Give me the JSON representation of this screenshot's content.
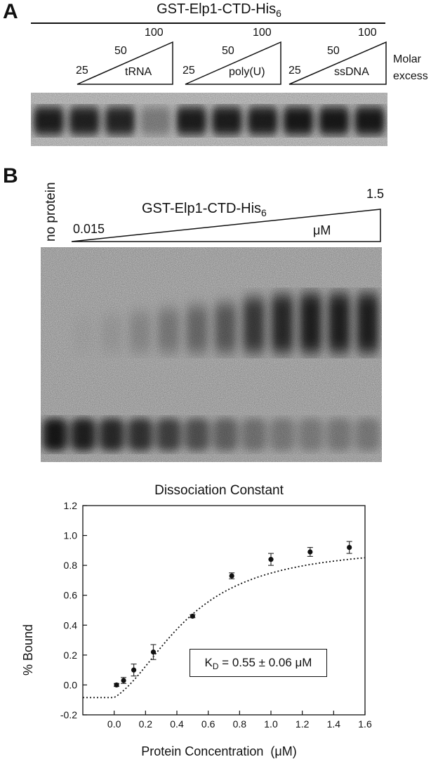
{
  "panel_a": {
    "letter": "A",
    "construct": {
      "text": "GST-Elp1-CTD-His",
      "subscript": "6"
    },
    "groups": [
      {
        "competitor": "tRNA",
        "amounts": [
          "25",
          "50",
          "100"
        ]
      },
      {
        "competitor": "poly(U)",
        "amounts": [
          "25",
          "50",
          "100"
        ]
      },
      {
        "competitor": "ssDNA",
        "amounts": [
          "25",
          "50",
          "100"
        ]
      }
    ],
    "side_label_line1": "Molar",
    "side_label_line2": "excess",
    "lane_intensities": [
      0.88,
      0.86,
      0.84,
      0.32,
      0.88,
      0.88,
      0.88,
      0.9,
      0.9,
      0.9
    ]
  },
  "panel_b": {
    "letter": "B",
    "no_protein_label": "no protein",
    "construct": {
      "text": "GST-Elp1-CTD-His",
      "subscript": "6"
    },
    "min_label": "0.015",
    "max_label": "1.5",
    "unit_label": "μM",
    "lanes": 12,
    "shifted_intensities": [
      0.0,
      0.05,
      0.1,
      0.2,
      0.3,
      0.4,
      0.5,
      0.7,
      0.8,
      0.85,
      0.85,
      0.85
    ],
    "free_intensities": [
      0.9,
      0.85,
      0.8,
      0.75,
      0.65,
      0.55,
      0.45,
      0.35,
      0.3,
      0.28,
      0.3,
      0.3
    ]
  },
  "chart_data": {
    "type": "scatter",
    "title": "Dissociation Constant",
    "xlabel": "Protein Concentration  (μM)",
    "ylabel": "% Bound",
    "xlim": [
      -0.2,
      1.6
    ],
    "ylim": [
      -0.2,
      1.2
    ],
    "xticks": [
      "0.0",
      "0.2",
      "0.4",
      "0.6",
      "0.8",
      "1.0",
      "1.2",
      "1.4",
      "1.6"
    ],
    "yticks": [
      "-0.2",
      "0.0",
      "0.2",
      "0.4",
      "0.6",
      "0.8",
      "1.0",
      "1.2"
    ],
    "points": [
      {
        "x": 0.015,
        "y": 0.0,
        "err": 0.01
      },
      {
        "x": 0.06,
        "y": 0.03,
        "err": 0.02
      },
      {
        "x": 0.125,
        "y": 0.1,
        "err": 0.04
      },
      {
        "x": 0.25,
        "y": 0.22,
        "err": 0.05
      },
      {
        "x": 0.5,
        "y": 0.46,
        "err": 0.01
      },
      {
        "x": 0.75,
        "y": 0.73,
        "err": 0.02
      },
      {
        "x": 1.0,
        "y": 0.84,
        "err": 0.04
      },
      {
        "x": 1.25,
        "y": 0.89,
        "err": 0.03
      },
      {
        "x": 1.5,
        "y": 0.92,
        "err": 0.04
      }
    ],
    "fit": {
      "style": "dotted",
      "kd": 0.55,
      "n": 2.2,
      "bmax": 0.93,
      "offset": -0.12
    },
    "annotation": {
      "prefix": "K",
      "subscript": "D",
      "rest": " = 0.55 ± 0.06 μM"
    }
  }
}
